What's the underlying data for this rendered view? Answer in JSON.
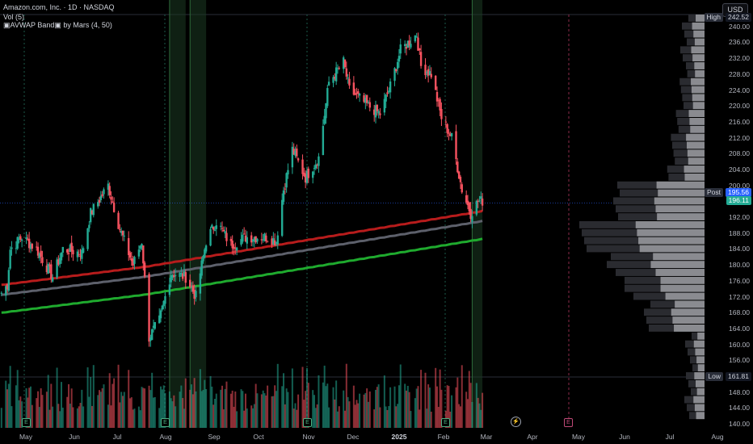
{
  "header": {
    "title": "Amazon.com, Inc. · 1D · NASDAQ",
    "volume_label": "Vol (5)",
    "indicator_label": "▣AVWAP Band▣ by Mars (4, 50)",
    "currency_button": "USD"
  },
  "price_tags": {
    "high": {
      "label": "High",
      "value": "242.52"
    },
    "post": {
      "label": "Post",
      "value": "195.56"
    },
    "last": {
      "value": "196.11"
    },
    "low": {
      "label": "Low",
      "value": "161.81"
    }
  },
  "price_axis": [
    "240.00",
    "236.00",
    "232.00",
    "228.00",
    "224.00",
    "220.00",
    "216.00",
    "212.00",
    "208.00",
    "204.00",
    "200.00",
    "192.00",
    "188.00",
    "184.00",
    "180.00",
    "176.00",
    "172.00",
    "168.00",
    "164.00",
    "160.00",
    "156.00",
    "152.00",
    "148.00",
    "144.00",
    "140.00"
  ],
  "time_axis": [
    "May",
    "Jun",
    "Jul",
    "Aug",
    "Sep",
    "Oct",
    "Nov",
    "Dec",
    "2025",
    "Feb",
    "Mar",
    "Apr",
    "May",
    "Jun",
    "Jul",
    "Aug"
  ],
  "earnings_markers": {
    "past": "E",
    "future": "E",
    "dividend_icon": "⚡"
  },
  "colors": {
    "up": "#22ab94",
    "down": "#f7525f",
    "background": "#000000",
    "band_upper": "#b71c1c",
    "band_mid": "#5d606b",
    "band_lower": "#1faa2e",
    "profile_dark": "#2a2b30",
    "profile_light": "#8a8b90"
  },
  "chart_data": {
    "type": "candlestick",
    "symbol": "Amazon.com, Inc.",
    "interval": "1D",
    "exchange": "NASDAQ",
    "x_range": [
      "2024-04-25",
      "2025-08-31"
    ],
    "y_range": [
      139,
      243
    ],
    "close_anchors": [
      [
        "2024-04-26",
        173
      ],
      [
        "2024-04-30",
        175
      ],
      [
        "2024-05-02",
        184
      ],
      [
        "2024-05-10",
        187
      ],
      [
        "2024-05-20",
        184
      ],
      [
        "2024-05-31",
        177
      ],
      [
        "2024-06-07",
        184
      ],
      [
        "2024-06-20",
        183
      ],
      [
        "2024-06-26",
        193
      ],
      [
        "2024-07-08",
        200
      ],
      [
        "2024-07-16",
        189
      ],
      [
        "2024-07-25",
        180
      ],
      [
        "2024-07-31",
        186
      ],
      [
        "2024-08-05",
        161.81
      ],
      [
        "2024-08-12",
        166
      ],
      [
        "2024-08-20",
        178
      ],
      [
        "2024-08-30",
        177
      ],
      [
        "2024-09-06",
        172
      ],
      [
        "2024-09-13",
        186
      ],
      [
        "2024-09-20",
        191
      ],
      [
        "2024-09-30",
        185
      ],
      [
        "2024-10-10",
        187
      ],
      [
        "2024-10-25",
        187
      ],
      [
        "2024-10-31",
        186
      ],
      [
        "2024-11-05",
        199
      ],
      [
        "2024-11-11",
        209
      ],
      [
        "2024-11-20",
        202
      ],
      [
        "2024-11-29",
        207
      ],
      [
        "2024-12-06",
        226
      ],
      [
        "2024-12-16",
        231
      ],
      [
        "2024-12-20",
        224
      ],
      [
        "2025-01-02",
        220
      ],
      [
        "2025-01-10",
        218
      ],
      [
        "2025-01-17",
        225
      ],
      [
        "2025-01-24",
        234
      ],
      [
        "2025-02-04",
        238
      ],
      [
        "2025-02-07",
        230
      ],
      [
        "2025-02-14",
        228
      ],
      [
        "2025-02-21",
        217
      ],
      [
        "2025-02-28",
        212
      ],
      [
        "2025-03-07",
        199
      ],
      [
        "2025-03-13",
        193
      ],
      [
        "2025-03-18",
        196
      ],
      [
        "2025-03-21",
        196.11
      ]
    ],
    "highlighted_periods": [
      [
        "2024-08-19",
        "2024-08-30"
      ],
      [
        "2024-09-02",
        "2024-09-13"
      ],
      [
        "2025-03-14",
        "2025-03-21"
      ]
    ]
  }
}
